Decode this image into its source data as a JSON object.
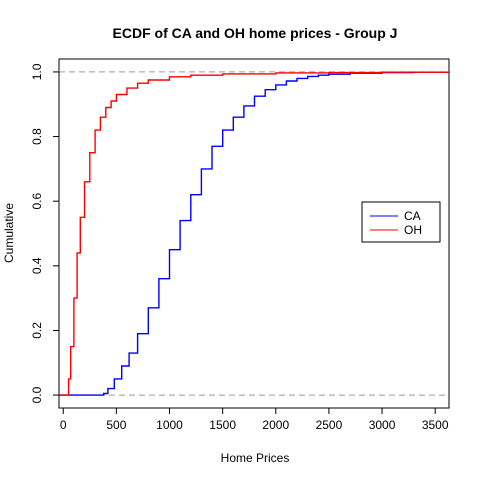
{
  "chart_data": {
    "type": "line",
    "title": "ECDF of CA and OH home prices - Group J",
    "xlabel": "Home Prices",
    "ylabel": "Cumulative",
    "xlim": [
      -40,
      3630
    ],
    "ylim": [
      -0.04,
      1.04
    ],
    "x_ticks": [
      0,
      500,
      1000,
      1500,
      2000,
      2500,
      3000,
      3500
    ],
    "x_tick_labels": [
      "0",
      "500",
      "1000",
      "1500",
      "2000",
      "2500",
      "3000",
      "3500"
    ],
    "y_ticks": [
      0.0,
      0.2,
      0.4,
      0.6,
      0.8,
      1.0
    ],
    "y_tick_labels": [
      "0.0",
      "0.2",
      "0.4",
      "0.6",
      "0.8",
      "1.0"
    ],
    "reference_lines": [
      0,
      1
    ],
    "grid": false,
    "legend_position": "right",
    "series": [
      {
        "name": "CA",
        "color": "#0000ff",
        "x": [
          -40,
          340,
          380,
          420,
          480,
          550,
          620,
          700,
          800,
          900,
          1000,
          1100,
          1200,
          1300,
          1400,
          1500,
          1600,
          1700,
          1800,
          1900,
          2000,
          2100,
          2200,
          2300,
          2400,
          2500,
          2700,
          3000,
          3300,
          3630
        ],
        "y": [
          0,
          0,
          0.005,
          0.02,
          0.05,
          0.09,
          0.13,
          0.19,
          0.27,
          0.36,
          0.45,
          0.54,
          0.62,
          0.7,
          0.77,
          0.82,
          0.86,
          0.895,
          0.925,
          0.945,
          0.96,
          0.972,
          0.98,
          0.986,
          0.99,
          0.993,
          0.996,
          0.998,
          0.999,
          1.0
        ]
      },
      {
        "name": "OH",
        "color": "#ff0000",
        "x": [
          -40,
          30,
          50,
          70,
          100,
          130,
          160,
          200,
          250,
          300,
          350,
          400,
          450,
          500,
          600,
          700,
          800,
          1000,
          1200,
          1500,
          2000,
          2500,
          3000,
          3630
        ],
        "y": [
          0,
          0,
          0.05,
          0.15,
          0.3,
          0.44,
          0.55,
          0.66,
          0.75,
          0.82,
          0.86,
          0.89,
          0.91,
          0.93,
          0.95,
          0.965,
          0.975,
          0.985,
          0.99,
          0.994,
          0.997,
          0.998,
          0.999,
          1.0
        ]
      }
    ]
  }
}
